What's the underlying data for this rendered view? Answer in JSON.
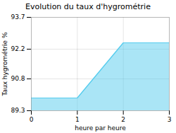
{
  "chart_data": {
    "type": "area",
    "title": "Evolution du taux d'hygrométrie",
    "xlabel": "heure par heure",
    "ylabel": "Taux hygrométrie %",
    "x": [
      0,
      1,
      2,
      3
    ],
    "values": [
      89.9,
      89.9,
      92.5,
      92.5
    ],
    "color": "#55ccee",
    "xlim": [
      0,
      3
    ],
    "ylim": [
      89.3,
      93.7
    ],
    "xticks": [
      0,
      1,
      2,
      3
    ],
    "yticks": [
      89.3,
      90.8,
      92.2,
      93.7
    ],
    "grid": true
  }
}
